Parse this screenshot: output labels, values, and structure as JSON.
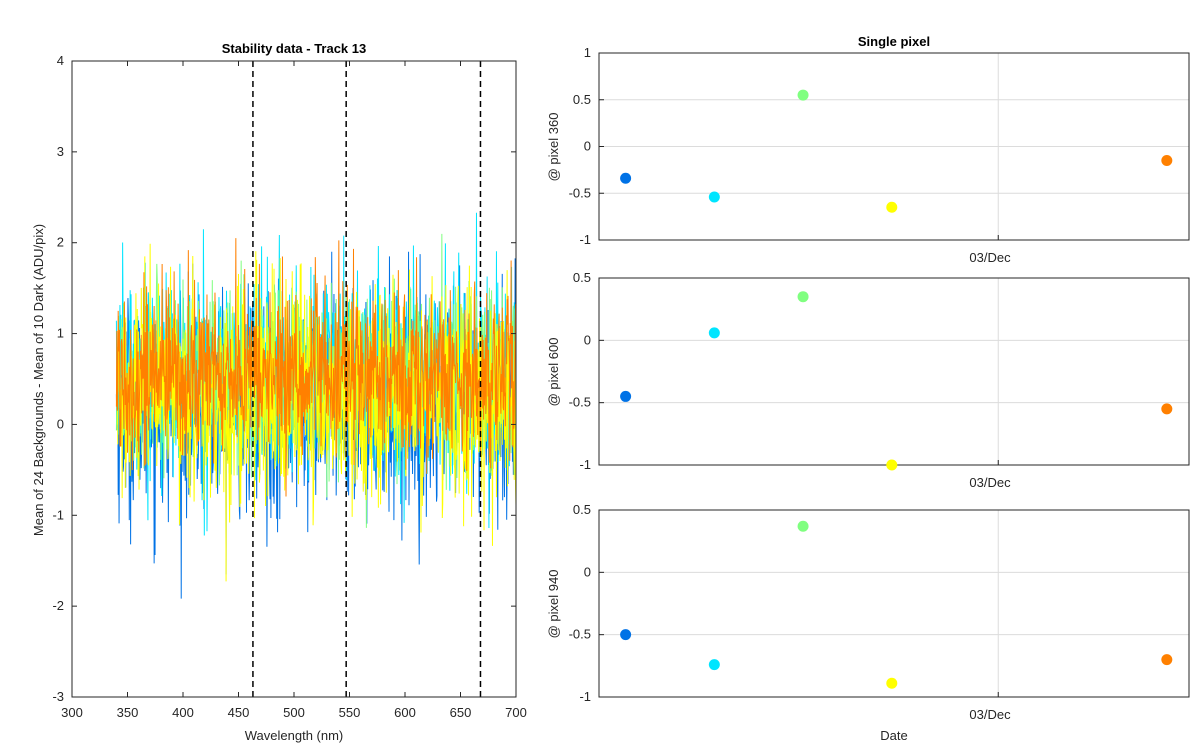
{
  "chart_data": [
    {
      "type": "line",
      "title": "Stability data - Track 13",
      "xlabel": "Wavelength (nm)",
      "ylabel": "Mean of 24 Backgrounds - Mean of 10 Dark (ADU/pix)",
      "xlim": [
        300,
        700
      ],
      "ylim": [
        -3,
        4
      ],
      "xticks": [
        300,
        350,
        400,
        450,
        500,
        550,
        600,
        650,
        700
      ],
      "yticks": [
        -3,
        -2,
        -1,
        0,
        1,
        2,
        3,
        4
      ],
      "x_range": [
        340,
        700
      ],
      "series": [
        {
          "color": "#0072E6",
          "mean": 0.2,
          "spread": 1.1,
          "min": -2.2,
          "max": 1.9
        },
        {
          "color": "#00E5FF",
          "mean": 0.6,
          "spread": 1.0,
          "min": -1.7,
          "max": 3.05
        },
        {
          "color": "#80FF80",
          "mean": 0.5,
          "spread": 0.9,
          "min": -1.5,
          "max": 2.4
        },
        {
          "color": "#FFFF00",
          "mean": 0.3,
          "spread": 1.1,
          "min": -2.45,
          "max": 2.3
        },
        {
          "color": "#FF8000",
          "mean": 0.55,
          "spread": 0.85,
          "min": -1.4,
          "max": 2.8
        }
      ],
      "vlines": [
        463,
        547,
        668
      ],
      "vline_style": "dashed-black"
    },
    {
      "type": "scatter",
      "title": "Single pixel",
      "ylabel": "@ pixel 360",
      "ylim": [
        -1,
        1
      ],
      "yticks": [
        "-1",
        "-0.5",
        "0",
        "0.5",
        "1"
      ],
      "xtick_label": "03/Dec",
      "grid": true,
      "points": [
        {
          "x": 0,
          "y": -0.34,
          "color": "#0072E6"
        },
        {
          "x": 1,
          "y": -0.54,
          "color": "#00E5FF"
        },
        {
          "x": 2,
          "y": 0.55,
          "color": "#80FF80"
        },
        {
          "x": 3,
          "y": -0.65,
          "color": "#FFFF00"
        },
        {
          "x": 6.1,
          "y": -0.15,
          "color": "#FF8000"
        }
      ]
    },
    {
      "type": "scatter",
      "ylabel": "@ pixel 600",
      "ylim": [
        -1,
        0.5
      ],
      "yticks": [
        "-1",
        "-0.5",
        "0",
        "0.5"
      ],
      "xtick_label": "03/Dec",
      "grid": true,
      "points": [
        {
          "x": 0,
          "y": -0.45,
          "color": "#0072E6"
        },
        {
          "x": 1,
          "y": 0.06,
          "color": "#00E5FF"
        },
        {
          "x": 2,
          "y": 0.35,
          "color": "#80FF80"
        },
        {
          "x": 3,
          "y": -1.0,
          "color": "#FFFF00"
        },
        {
          "x": 6.1,
          "y": -0.55,
          "color": "#FF8000"
        }
      ]
    },
    {
      "type": "scatter",
      "ylabel": "@ pixel 940",
      "ylim": [
        -1,
        0.5
      ],
      "yticks": [
        "-1",
        "-0.5",
        "0",
        "0.5"
      ],
      "xtick_label": "03/Dec",
      "xlabel": "Date",
      "grid": true,
      "points": [
        {
          "x": 0,
          "y": -0.5,
          "color": "#0072E6"
        },
        {
          "x": 1,
          "y": -0.74,
          "color": "#00E5FF"
        },
        {
          "x": 2,
          "y": 0.37,
          "color": "#80FF80"
        },
        {
          "x": 3,
          "y": -0.89,
          "color": "#FFFF00"
        },
        {
          "x": 6.1,
          "y": -0.7,
          "color": "#FF8000"
        }
      ]
    }
  ]
}
